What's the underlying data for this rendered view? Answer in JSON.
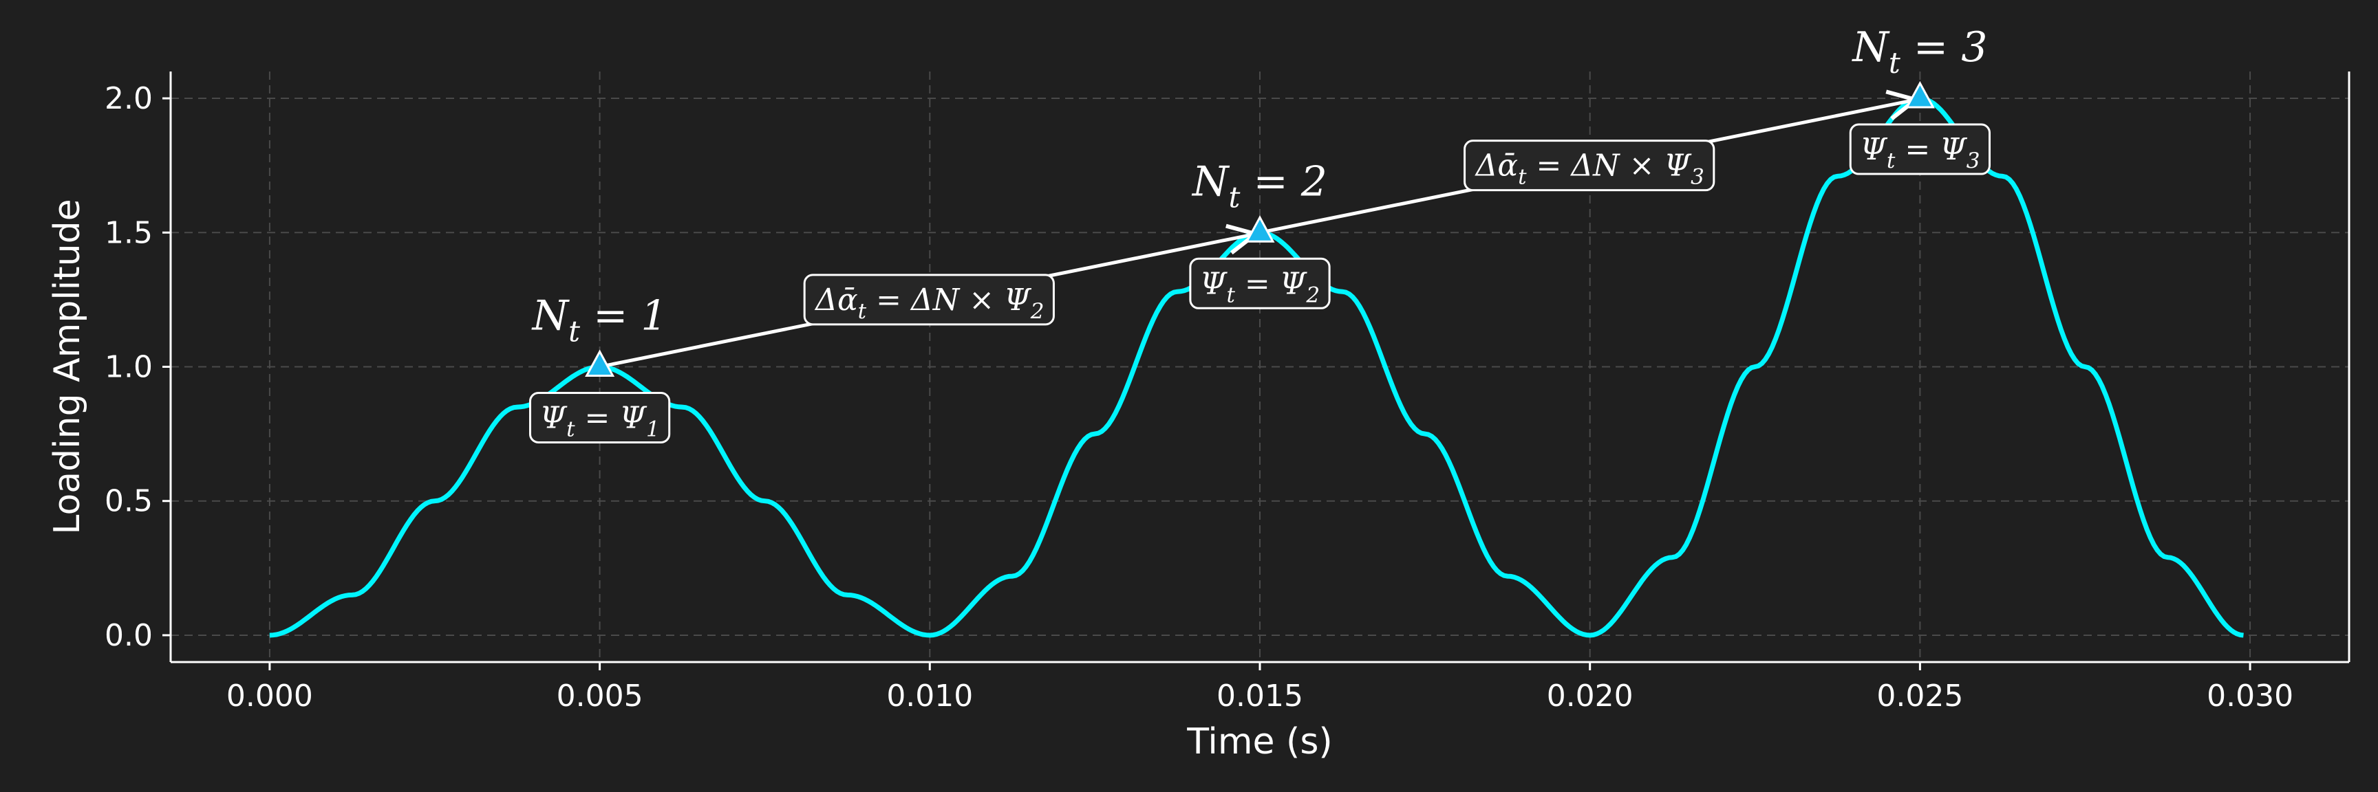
{
  "chart_data": {
    "type": "line",
    "xlabel": "Time (s)",
    "ylabel": "Loading Amplitude",
    "xlim": [
      -0.0015,
      0.0315
    ],
    "ylim": [
      -0.1,
      2.1
    ],
    "xticks": [
      "0.000",
      "0.005",
      "0.010",
      "0.015",
      "0.020",
      "0.025",
      "0.030"
    ],
    "xtick_values": [
      0.0,
      0.005,
      0.01,
      0.015,
      0.02,
      0.025,
      0.03
    ],
    "yticks": [
      "0.0",
      "0.5",
      "1.0",
      "1.5",
      "2.0"
    ],
    "ytick_values": [
      0.0,
      0.5,
      1.0,
      1.5,
      2.0
    ],
    "grid": true,
    "series": [
      {
        "x": [
          0.0,
          0.00125,
          0.0025,
          0.00375,
          0.005,
          0.00625,
          0.0075,
          0.00875,
          0.01,
          0.01125,
          0.0125,
          0.01375,
          0.015,
          0.01625,
          0.0175,
          0.01875,
          0.02,
          0.02125,
          0.0225,
          0.02375,
          0.025,
          0.02625,
          0.0275,
          0.02875,
          0.0299
        ],
        "y": [
          0.0,
          0.15,
          0.5,
          0.85,
          1.0,
          0.85,
          0.5,
          0.15,
          0.0,
          0.22,
          0.75,
          1.28,
          1.5,
          1.28,
          0.75,
          0.22,
          0.0,
          0.29,
          1.0,
          1.71,
          2.0,
          1.71,
          1.0,
          0.29,
          0.0
        ],
        "color": "#00f5ff"
      }
    ],
    "markers": [
      {
        "x": 0.005,
        "y": 1.0,
        "label": "N_t = 1"
      },
      {
        "x": 0.015,
        "y": 1.5,
        "label": "N_t = 2"
      },
      {
        "x": 0.025,
        "y": 2.0,
        "label": "N_t = 3"
      }
    ],
    "peak_boxes": [
      "Ψ_t = Ψ_1",
      "Ψ_t = Ψ_2",
      "Ψ_t = Ψ_3"
    ],
    "increment_boxes": [
      "Δᾱ_t = ΔN × Ψ_2",
      "Δᾱ_t = ΔN × Ψ_3"
    ],
    "colors": {
      "background": "#1f1f1f",
      "curve": "#00f5ff",
      "marker": "#1ab8ee"
    }
  }
}
